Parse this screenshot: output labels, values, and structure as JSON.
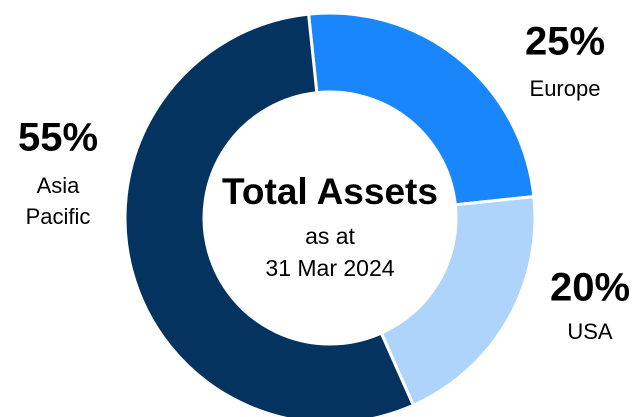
{
  "chart_data": {
    "type": "donut",
    "title": "Total Assets",
    "subtitle": [
      "as at",
      "31 Mar 2024"
    ],
    "categories": [
      "Europe",
      "USA",
      "Asia Pacific"
    ],
    "values": [
      25,
      20,
      55
    ],
    "value_labels": [
      "25%",
      "20%",
      "55%"
    ],
    "colors": [
      "#1a86fb",
      "#aed4fb",
      "#04335f"
    ]
  }
}
